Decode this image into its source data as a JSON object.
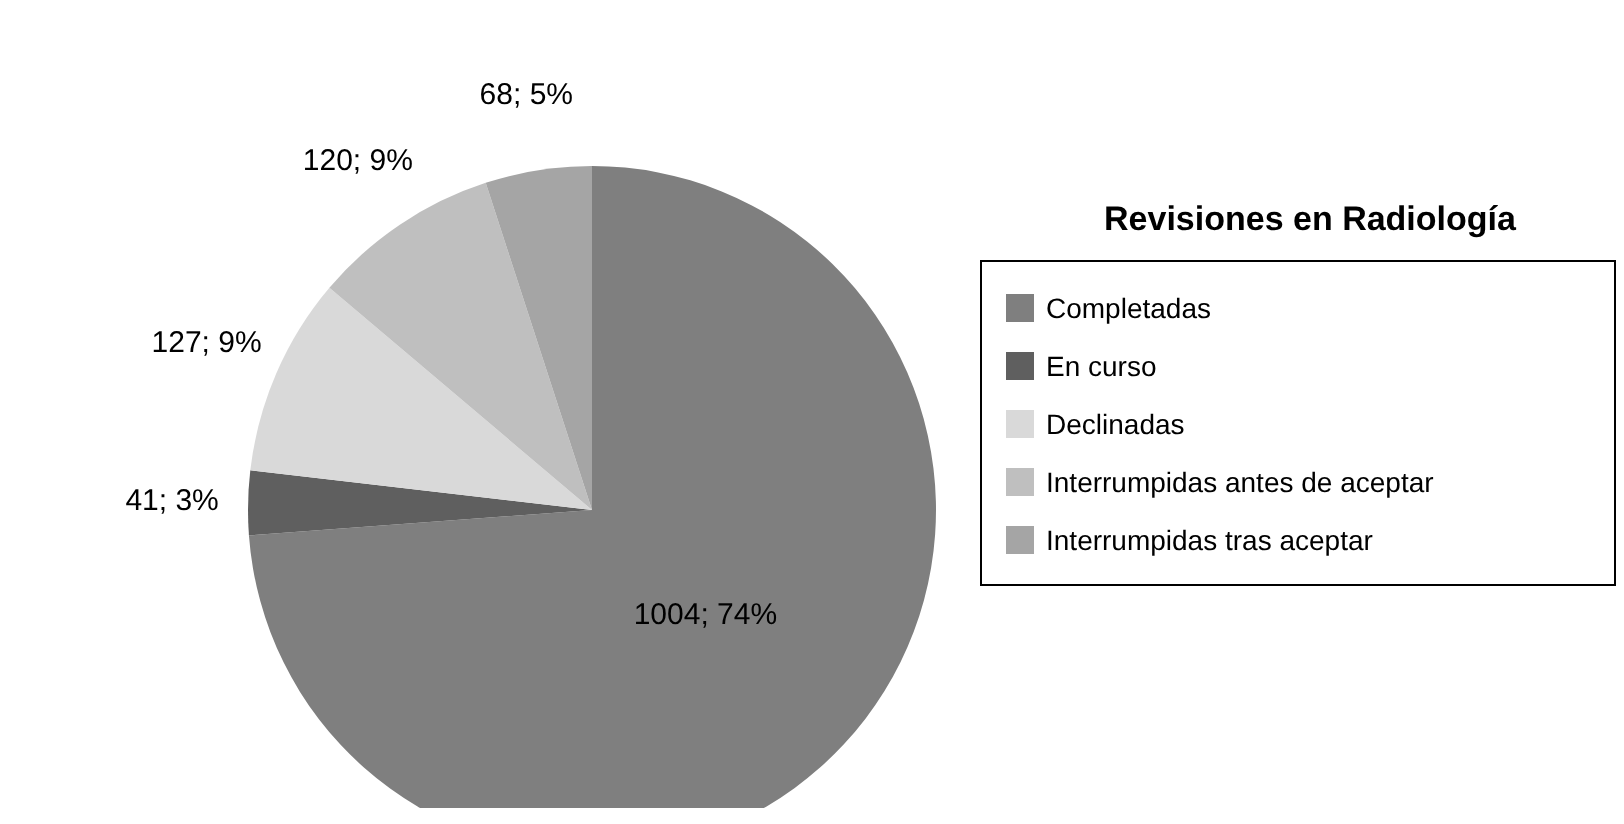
{
  "chart_data": {
    "type": "pie",
    "legend_title": "Revisiones en Radiología",
    "legend": "right",
    "categories": [
      "Completadas",
      "En curso",
      "Declinadas",
      "Interrumpidas antes de aceptar",
      "Interrumpidas tras aceptar"
    ],
    "values": [
      1004,
      41,
      127,
      120,
      68
    ],
    "colors": [
      "#7f7f7f",
      "#5f5f5f",
      "#d9d9d9",
      "#bfbfbf",
      "#a5a5a5"
    ],
    "value_labels": [
      "1004; 74%",
      "41; 3%",
      "127; 9%",
      "120; 9%",
      "68; 5%"
    ]
  }
}
